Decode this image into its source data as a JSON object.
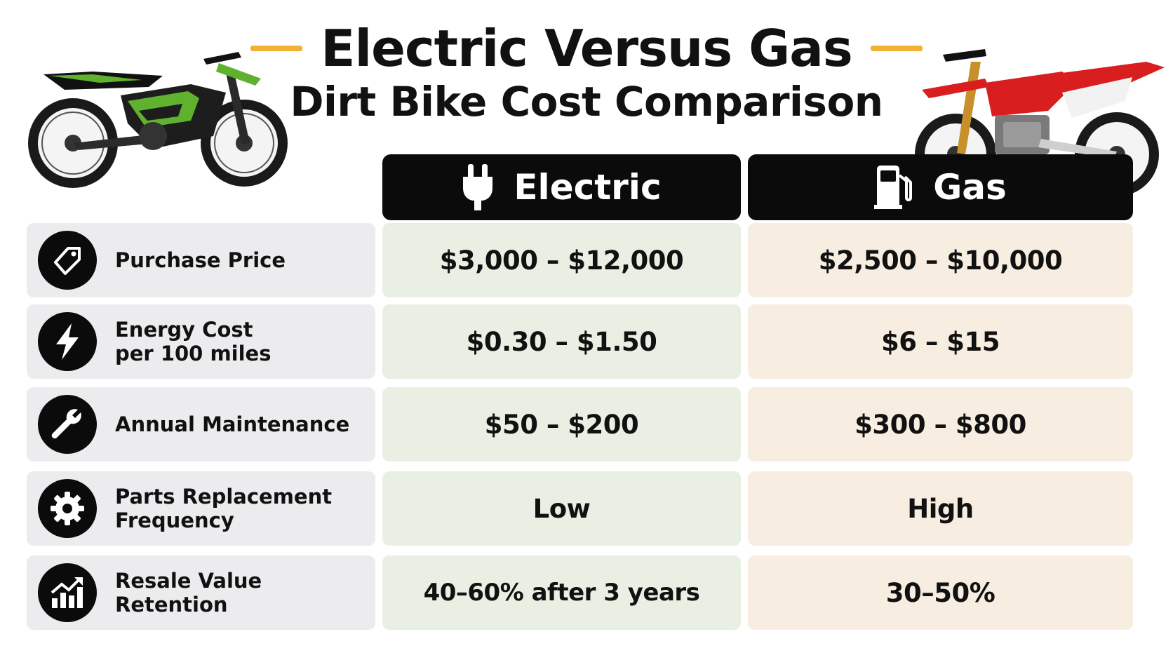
{
  "title": {
    "line1": "Electric Versus Gas",
    "line2": "Dirt Bike Cost Comparison",
    "accent_color": "#f2b134"
  },
  "columns": {
    "electric": {
      "label": "Electric",
      "icon": "plug-icon",
      "cell_color": "#e9efe3"
    },
    "gas": {
      "label": "Gas",
      "icon": "fuel-pump-icon",
      "cell_color": "#f7ede0"
    }
  },
  "rows": [
    {
      "label": "Purchase Price",
      "icon": "price-tag-icon",
      "electric": "$3,000 – $12,000",
      "gas": "$2,500 – $10,000"
    },
    {
      "label": "Energy Cost\nper 100 miles",
      "icon": "lightning-icon",
      "electric": "$0.30 – $1.50",
      "gas": "$6 – $15"
    },
    {
      "label": "Annual Maintenance",
      "icon": "wrench-icon",
      "electric": "$50 – $200",
      "gas": "$300 – $800"
    },
    {
      "label": "Parts Replacement\nFrequency",
      "icon": "gear-icon",
      "electric": "Low",
      "gas": "High"
    },
    {
      "label": "Resale Value Retention",
      "icon": "growth-chart-icon",
      "electric": "40–60% after 3 years",
      "gas": "30–50%"
    }
  ],
  "images": {
    "left": "electric-dirt-bike-image",
    "right": "gas-dirt-bike-image"
  }
}
